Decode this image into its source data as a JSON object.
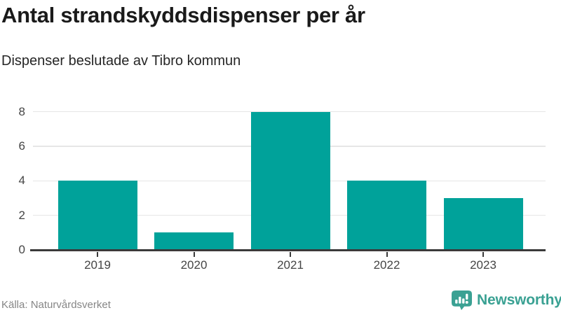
{
  "header": {
    "title": "Antal strandskyddsdispenser per år",
    "subtitle": "Dispenser beslutade av Tibro kommun"
  },
  "chart_data": {
    "type": "bar",
    "title": "Antal strandskyddsdispenser per år",
    "subtitle": "Dispenser beslutade av Tibro kommun",
    "categories": [
      "2019",
      "2020",
      "2021",
      "2022",
      "2023"
    ],
    "values": [
      4,
      1,
      8,
      4,
      3
    ],
    "xlabel": "",
    "ylabel": "",
    "ylim": [
      0,
      8
    ],
    "yticks": [
      0,
      2,
      4,
      6,
      8
    ],
    "grid": "horizontal",
    "legend": "none",
    "bar_color": "#00a29a"
  },
  "footer": {
    "source": "Källa: Naturvårdsverket",
    "brand": "Newsworthy"
  },
  "icons": {
    "brand_logo": "newsworthy-speech-bubble-barchart-icon"
  },
  "colors": {
    "bar": "#00a29a",
    "title_text": "#1a1a1a",
    "subtitle_text": "#262626",
    "tick_text": "#454545",
    "gridline": "#e6e6e6",
    "axis_line": "#3a3a3a",
    "source_text": "#868686",
    "brand_teal": "#3aa193",
    "background": "#ffffff"
  }
}
